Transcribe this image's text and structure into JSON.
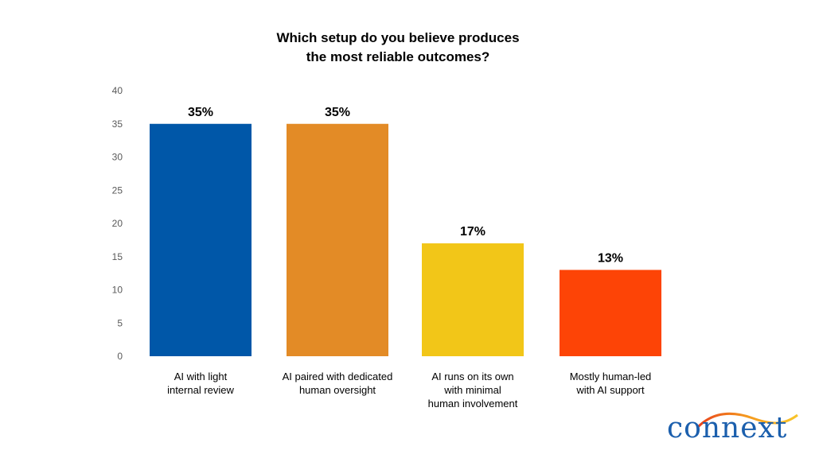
{
  "chart_data": {
    "type": "bar",
    "title_lines": [
      "Which setup do you believe produces",
      "the most reliable outcomes?"
    ],
    "categories": [
      [
        "AI with light",
        "internal review"
      ],
      [
        "AI paired with dedicated",
        "human oversight"
      ],
      [
        "AI runs on its own",
        "with minimal",
        "human involvement"
      ],
      [
        "Mostly human-led",
        "with AI support"
      ]
    ],
    "values": [
      35,
      35,
      17,
      13
    ],
    "data_labels": [
      "35%",
      "35%",
      "17%",
      "13%"
    ],
    "colors": [
      "#0057a8",
      "#e38b26",
      "#f2c618",
      "#fd4406"
    ],
    "ylim": [
      0,
      40
    ],
    "yticks": [
      "0",
      "5",
      "10",
      "15",
      "20",
      "25",
      "30",
      "35",
      "40"
    ],
    "xlabel": "",
    "ylabel": "",
    "grid": false,
    "legend": "none"
  },
  "logo": {
    "text": "connext"
  }
}
